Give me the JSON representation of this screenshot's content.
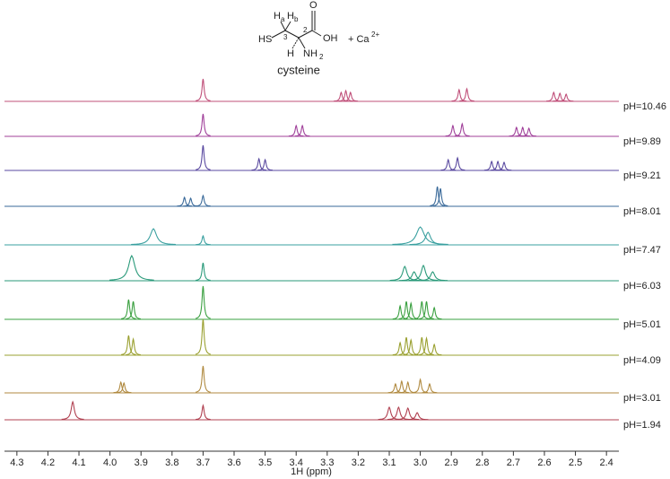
{
  "chart_data": {
    "type": "stacked-spectra",
    "xlabel": "1H (ppm)",
    "xlim": [
      4.34,
      2.36
    ],
    "xticks": [
      4.3,
      4.2,
      4.1,
      {
        "value": 4,
        "label": "4.0"
      },
      3.9,
      3.8,
      3.7,
      3.6,
      3.5,
      3.4,
      3.3,
      3.2,
      3.1,
      {
        "value": 3,
        "label": "3.0"
      },
      2.9,
      2.8,
      2.7,
      2.6,
      2.5,
      2.4
    ],
    "structure": {
      "thiol": "HS",
      "ha": "H",
      "ha_sub": "a",
      "hb": "H",
      "hb_sub": "b",
      "c3": "3",
      "c2": "2",
      "oxo": "O",
      "hydroxyl": "OH",
      "h": "H",
      "amine": "NH",
      "amine_sub": "2",
      "reagent": "+ Ca",
      "charge": "2+",
      "name": "cysteine"
    },
    "series": [
      {
        "name": "pH=10.46",
        "color": "#c0507a",
        "peaks": [
          {
            "x": 3.7,
            "height": 25
          },
          {
            "x": 3.255,
            "height": 10
          },
          {
            "x": 3.24,
            "height": 12
          },
          {
            "x": 3.225,
            "height": 10
          },
          {
            "x": 2.875,
            "height": 13
          },
          {
            "x": 2.85,
            "height": 14
          },
          {
            "x": 2.57,
            "height": 10
          },
          {
            "x": 2.55,
            "height": 9
          },
          {
            "x": 2.53,
            "height": 8
          }
        ]
      },
      {
        "name": "pH=9.89",
        "color": "#a0409a",
        "peaks": [
          {
            "x": 3.7,
            "height": 25
          },
          {
            "x": 3.4,
            "height": 12
          },
          {
            "x": 3.38,
            "height": 12
          },
          {
            "x": 2.895,
            "height": 12
          },
          {
            "x": 2.865,
            "height": 14
          },
          {
            "x": 2.69,
            "height": 10
          },
          {
            "x": 2.67,
            "height": 10
          },
          {
            "x": 2.65,
            "height": 9
          }
        ]
      },
      {
        "name": "pH=9.21",
        "color": "#5a4aa0",
        "peaks": [
          {
            "x": 3.7,
            "height": 28
          },
          {
            "x": 3.52,
            "height": 13
          },
          {
            "x": 3.5,
            "height": 12
          },
          {
            "x": 2.91,
            "height": 12
          },
          {
            "x": 2.88,
            "height": 14
          },
          {
            "x": 2.77,
            "height": 10
          },
          {
            "x": 2.75,
            "height": 10
          },
          {
            "x": 2.73,
            "height": 9
          }
        ]
      },
      {
        "name": "pH=8.01",
        "color": "#3a6a9a",
        "peaks": [
          {
            "x": 3.76,
            "height": 10
          },
          {
            "x": 3.74,
            "height": 9
          },
          {
            "x": 3.7,
            "height": 12
          },
          {
            "x": 2.945,
            "height": 22
          },
          {
            "x": 2.935,
            "height": 20
          }
        ]
      },
      {
        "name": "pH=7.47",
        "color": "#3aa0a0",
        "peaks": [
          {
            "x": 3.86,
            "height": 18,
            "width": 0.012
          },
          {
            "x": 3.7,
            "height": 10
          },
          {
            "x": 3.0,
            "height": 20,
            "width": 0.015
          },
          {
            "x": 2.975,
            "height": 14,
            "width": 0.01
          }
        ]
      },
      {
        "name": "pH=6.03",
        "color": "#2a9a7a",
        "peaks": [
          {
            "x": 3.93,
            "height": 28,
            "width": 0.012
          },
          {
            "x": 3.7,
            "height": 20
          },
          {
            "x": 3.05,
            "height": 16,
            "width": 0.008
          },
          {
            "x": 3.02,
            "height": 10,
            "width": 0.008
          },
          {
            "x": 2.99,
            "height": 17,
            "width": 0.008
          },
          {
            "x": 2.96,
            "height": 10,
            "width": 0.008
          }
        ]
      },
      {
        "name": "pH=5.01",
        "color": "#3aa040",
        "peaks": [
          {
            "x": 3.94,
            "height": 22
          },
          {
            "x": 3.925,
            "height": 20
          },
          {
            "x": 3.7,
            "height": 37
          },
          {
            "x": 3.065,
            "height": 15
          },
          {
            "x": 3.045,
            "height": 20
          },
          {
            "x": 3.03,
            "height": 18
          },
          {
            "x": 2.995,
            "height": 20
          },
          {
            "x": 2.98,
            "height": 20
          },
          {
            "x": 2.955,
            "height": 13
          }
        ]
      },
      {
        "name": "pH=4.09",
        "color": "#9aa030",
        "peaks": [
          {
            "x": 3.94,
            "height": 22
          },
          {
            "x": 3.925,
            "height": 18
          },
          {
            "x": 3.7,
            "height": 40
          },
          {
            "x": 3.065,
            "height": 14
          },
          {
            "x": 3.045,
            "height": 20
          },
          {
            "x": 3.03,
            "height": 17
          },
          {
            "x": 2.995,
            "height": 20
          },
          {
            "x": 2.98,
            "height": 19
          },
          {
            "x": 2.955,
            "height": 12
          }
        ]
      },
      {
        "name": "pH=3.01",
        "color": "#b08a40",
        "peaks": [
          {
            "x": 3.965,
            "height": 12
          },
          {
            "x": 3.955,
            "height": 11
          },
          {
            "x": 3.7,
            "height": 30
          },
          {
            "x": 3.08,
            "height": 10
          },
          {
            "x": 3.06,
            "height": 13
          },
          {
            "x": 3.04,
            "height": 12
          },
          {
            "x": 3.0,
            "height": 15
          },
          {
            "x": 2.97,
            "height": 10
          }
        ]
      },
      {
        "name": "pH=1.94",
        "color": "#b04050",
        "peaks": [
          {
            "x": 4.12,
            "height": 20,
            "width": 0.006
          },
          {
            "x": 3.7,
            "height": 16
          },
          {
            "x": 3.1,
            "height": 14,
            "width": 0.006
          },
          {
            "x": 3.07,
            "height": 14,
            "width": 0.006
          },
          {
            "x": 3.04,
            "height": 13,
            "width": 0.006
          },
          {
            "x": 3.01,
            "height": 8,
            "width": 0.006
          }
        ]
      }
    ]
  }
}
